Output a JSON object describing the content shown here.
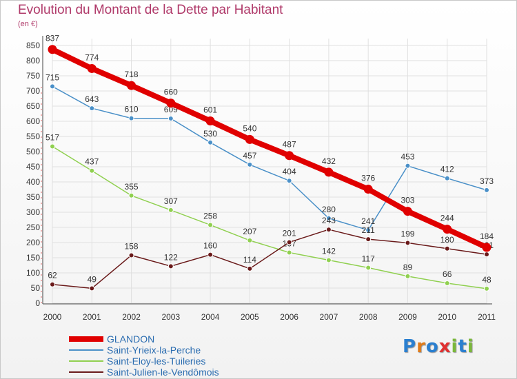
{
  "chart_title": "Evolution du Montant de la Dette par Habitant",
  "unit_label": "(en €)",
  "logo": {
    "text": "Proxiti",
    "colors": [
      "#2a7fd0",
      "#e07b1a",
      "#2a7fd0",
      "#e03030",
      "#7ab83a",
      "#2a7fd0",
      "#7ab83a"
    ]
  },
  "chart_data": {
    "type": "line",
    "title": "Evolution du Montant de la Dette par Habitant",
    "ylabel": "(en €)",
    "x": [
      "2000",
      "2001",
      "2002",
      "2003",
      "2004",
      "2005",
      "2006",
      "2007",
      "2008",
      "2009",
      "2010",
      "2011"
    ],
    "ylim": [
      0,
      850
    ],
    "yticks": [
      0,
      50,
      100,
      150,
      200,
      250,
      300,
      350,
      400,
      450,
      500,
      550,
      600,
      650,
      700,
      750,
      800,
      850
    ],
    "grid": true,
    "legend_position": "bottom-left",
    "series": [
      {
        "name": "GLANDON",
        "color": "#e00000",
        "emphasis": true,
        "values": [
          837,
          774,
          718,
          660,
          601,
          540,
          487,
          432,
          376,
          303,
          244,
          184
        ]
      },
      {
        "name": "Saint-Yrieix-la-Perche",
        "color": "#4a90c8",
        "values": [
          715,
          643,
          610,
          609,
          530,
          457,
          404,
          280,
          241,
          453,
          412,
          373
        ]
      },
      {
        "name": "Saint-Eloy-les-Tuileries",
        "color": "#90d050",
        "values": [
          517,
          437,
          355,
          307,
          258,
          207,
          167,
          142,
          117,
          89,
          66,
          48
        ]
      },
      {
        "name": "Saint-Julien-le-Vendômois",
        "color": "#6a1a1a",
        "values": [
          62,
          49,
          158,
          122,
          160,
          114,
          201,
          243,
          211,
          199,
          180,
          161
        ]
      }
    ]
  }
}
